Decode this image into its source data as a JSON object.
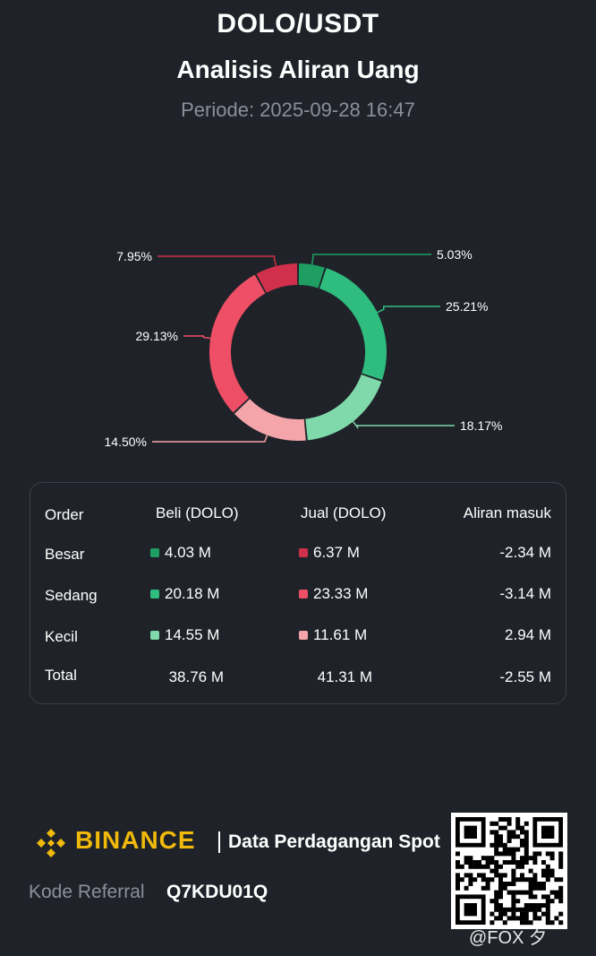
{
  "header": {
    "pair": "DOLO/USDT",
    "subtitle": "Analisis Aliran Uang",
    "period": "Periode: 2025-09-28 16:47"
  },
  "chart_data": {
    "type": "pie",
    "style": "donut",
    "slices": [
      {
        "label": "5.03%",
        "value": 5.03,
        "color": "#1e9e63"
      },
      {
        "label": "25.21%",
        "value": 25.21,
        "color": "#2ebd7f"
      },
      {
        "label": "18.17%",
        "value": 18.17,
        "color": "#7fd9ab"
      },
      {
        "label": "14.50%",
        "value": 14.5,
        "color": "#f4a5aa"
      },
      {
        "label": "29.13%",
        "value": 29.13,
        "color": "#ef4f66"
      },
      {
        "label": "7.95%",
        "value": 7.95,
        "color": "#d0304b"
      }
    ]
  },
  "table": {
    "headers": [
      "Order",
      "Beli (DOLO)",
      "Jual (DOLO)",
      "Aliran masuk"
    ],
    "rows": [
      {
        "label": "Besar",
        "buy": "4.03 M",
        "sell": "6.37 M",
        "net": "-2.34 M",
        "buy_color": "#1e9e63",
        "sell_color": "#d0304b"
      },
      {
        "label": "Sedang",
        "buy": "20.18 M",
        "sell": "23.33 M",
        "net": "-3.14 M",
        "buy_color": "#2ebd7f",
        "sell_color": "#ef4f66"
      },
      {
        "label": "Kecil",
        "buy": "14.55 M",
        "sell": "11.61 M",
        "net": "2.94 M",
        "buy_color": "#7fd9ab",
        "sell_color": "#f4a5aa"
      }
    ],
    "total": {
      "label": "Total",
      "buy": "38.76 M",
      "sell": "41.31 M",
      "net": "-2.55 M"
    }
  },
  "footer": {
    "brand": "BINANCE",
    "tagline": "Data Perdagangan Spot",
    "referral_label": "Kode Referral",
    "referral_code": "Q7KDU01Q",
    "watermark": "@FOX 夕",
    "brand_color": "#f0b90b"
  }
}
